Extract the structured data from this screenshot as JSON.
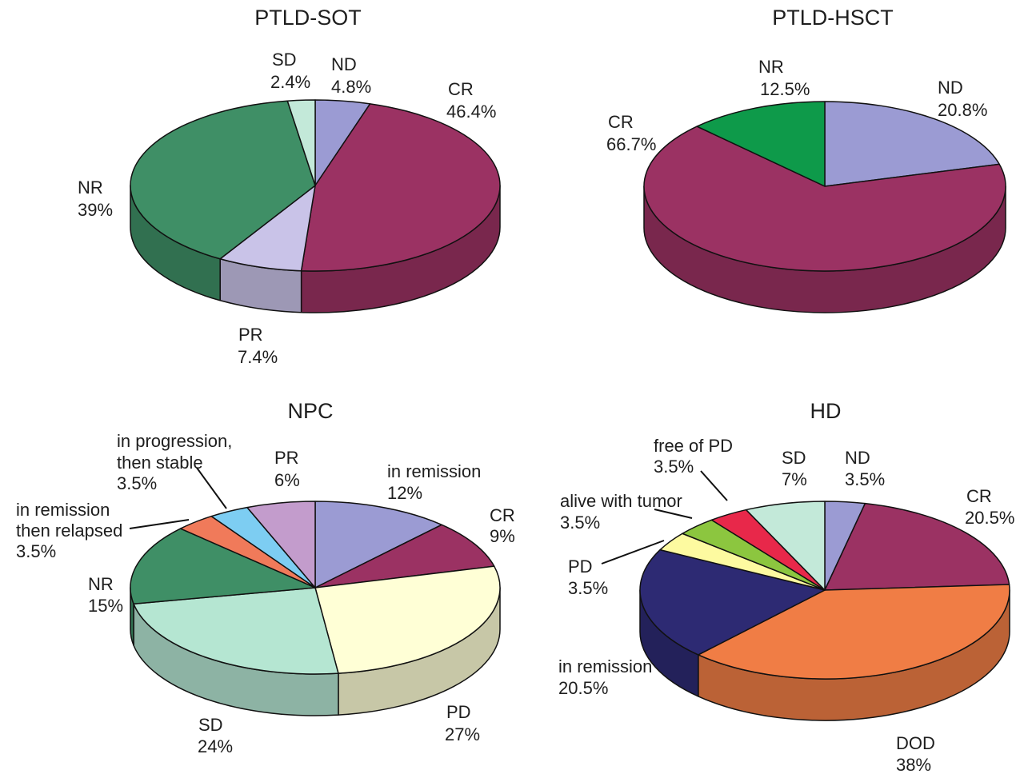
{
  "chart_data": [
    {
      "type": "pie",
      "title": "PTLD-SOT",
      "slices": [
        {
          "name": "ND",
          "value": "4.8%",
          "pct": 4.8,
          "color": "#9b9bd3"
        },
        {
          "name": "CR",
          "value": "46.4%",
          "pct": 46.4,
          "color": "#9b3263"
        },
        {
          "name": "PR",
          "value": "7.4%",
          "pct": 7.4,
          "color": "#c9c3e8"
        },
        {
          "name": "NR",
          "value": "39%",
          "pct": 39.0,
          "color": "#3f8f66"
        },
        {
          "name": "SD",
          "value": "2.4%",
          "pct": 2.4,
          "color": "#c3e9d9"
        }
      ]
    },
    {
      "type": "pie",
      "title": "PTLD-HSCT",
      "slices": [
        {
          "name": "ND",
          "value": "20.8%",
          "pct": 20.8,
          "color": "#9b9bd3"
        },
        {
          "name": "CR",
          "value": "66.7%",
          "pct": 66.7,
          "color": "#9b3263"
        },
        {
          "name": "NR",
          "value": "12.5%",
          "pct": 12.5,
          "color": "#0e9a4a"
        }
      ]
    },
    {
      "type": "pie",
      "title": "NPC",
      "slices": [
        {
          "name": "in remission",
          "value": "12%",
          "pct": 12.0,
          "color": "#9b9bd3"
        },
        {
          "name": "CR",
          "value": "9%",
          "pct": 9.0,
          "color": "#9b3263"
        },
        {
          "name": "PD",
          "value": "27%",
          "pct": 27.0,
          "color": "#ffffd6"
        },
        {
          "name": "SD",
          "value": "24%",
          "pct": 24.0,
          "color": "#b5e6d2"
        },
        {
          "name": "NR",
          "value": "15%",
          "pct": 15.0,
          "color": "#3f8f66"
        },
        {
          "name": "in remission then relapsed",
          "value": "3.5%",
          "pct": 3.5,
          "color": "#f07a5a"
        },
        {
          "name": "in progression, then stable",
          "value": "3.5%",
          "pct": 3.5,
          "color": "#7dcdf2"
        },
        {
          "name": "PR",
          "value": "6%",
          "pct": 6.0,
          "color": "#c39ccc"
        }
      ],
      "label_lines": {
        "in progression, then stable": [
          "in progression,",
          "then stable"
        ],
        "in remission then relapsed": [
          "in remission",
          "then relapsed"
        ]
      }
    },
    {
      "type": "pie",
      "title": "HD",
      "slices": [
        {
          "name": "ND",
          "value": "3.5%",
          "pct": 3.5,
          "color": "#9b9bd3"
        },
        {
          "name": "CR",
          "value": "20.5%",
          "pct": 20.5,
          "color": "#9b3263"
        },
        {
          "name": "DOD",
          "value": "38%",
          "pct": 38.0,
          "color": "#f07d45"
        },
        {
          "name": "in remission",
          "value": "20.5%",
          "pct": 20.5,
          "color": "#2d2a73"
        },
        {
          "name": "PD",
          "value": "3.5%",
          "pct": 3.5,
          "color": "#fdfaa0"
        },
        {
          "name": "alive with tumor",
          "value": "3.5%",
          "pct": 3.5,
          "color": "#8cc63f"
        },
        {
          "name": "free of PD",
          "value": "3.5%",
          "pct": 3.5,
          "color": "#e8284a"
        },
        {
          "name": "SD",
          "value": "7%",
          "pct": 7.0,
          "color": "#c3e9d9"
        }
      ]
    }
  ]
}
